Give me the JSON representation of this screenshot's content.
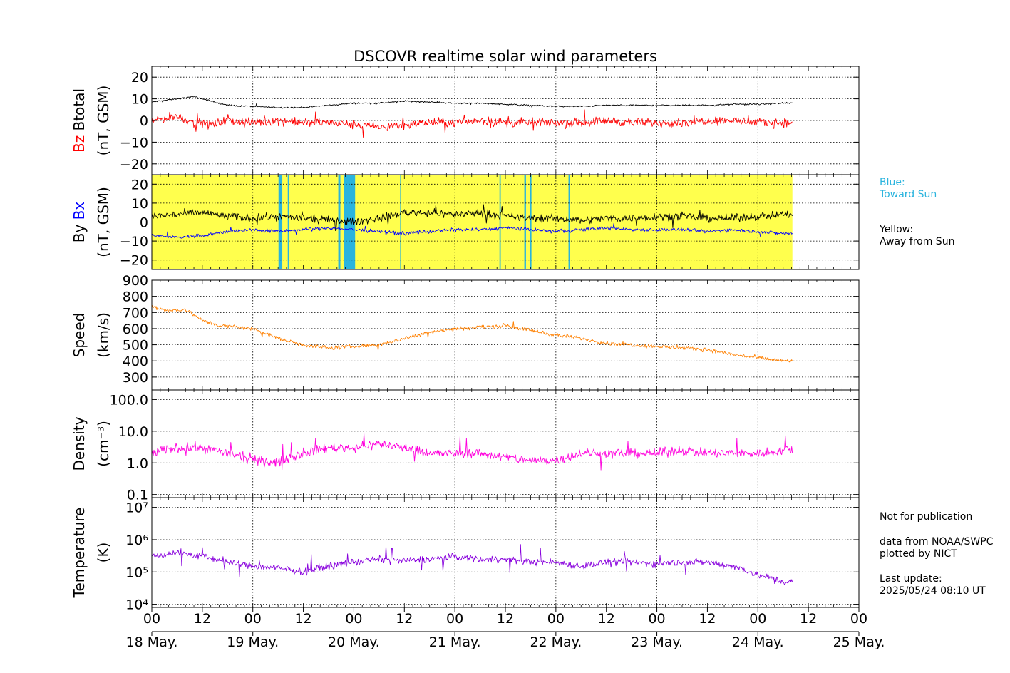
{
  "title": "DSCOVR realtime solar wind parameters",
  "colors": {
    "btotal": "#000000",
    "bz": "#ff0000",
    "by": "#000000",
    "bx": "#0000ff",
    "speed": "#ff8000",
    "density": "#ff00dd",
    "temperature": "#8800dd",
    "away_from_sun": "#ffff4d",
    "toward_sun": "#2ab4de"
  },
  "legend": {
    "blue_title": "Blue:",
    "blue_text": "Toward Sun",
    "yellow_title": "Yellow:",
    "yellow_text": "Away from Sun"
  },
  "notes": {
    "line1": "Not for publication",
    "line2": "data from NOAA/SWPC",
    "line3": "plotted by NICT",
    "line4": "Last update:",
    "line5": "2025/05/24 08:10 UT"
  },
  "chart_data": {
    "type": "line",
    "x_unit": "hours since 18 May 00 UT",
    "x_range": [
      0,
      168
    ],
    "x_hour_ticks": [
      "00",
      "12",
      "00",
      "12",
      "00",
      "12",
      "00",
      "12",
      "00",
      "12",
      "00",
      "12",
      "00",
      "12",
      "00"
    ],
    "x_date_labels": [
      "18 May.",
      "19 May.",
      "20 May.",
      "21 May.",
      "22 May.",
      "23 May.",
      "24 May.",
      "25 May."
    ],
    "data_end_hour": 152.2,
    "grid": true,
    "panels": [
      {
        "id": "mag",
        "ylabel_series1": "Bz",
        "ylabel_series2": "Btotal",
        "yunit": "(nT, GSM)",
        "ylim": [
          -25,
          25
        ],
        "yticks": [
          "20",
          "10",
          "0",
          "−10",
          "−20"
        ],
        "ytick_values": [
          20,
          10,
          0,
          -10,
          -20
        ],
        "series": [
          {
            "name": "Btotal",
            "x": [
              0,
              6,
              10,
              14,
              18,
              24,
              30,
              36,
              42,
              48,
              54,
              60,
              66,
              72,
              78,
              84,
              90,
              96,
              102,
              108,
              114,
              120,
              126,
              132,
              138,
              144,
              150,
              152
            ],
            "values": [
              8.5,
              10,
              11,
              9,
              7,
              6.5,
              6,
              6,
              7,
              8,
              8,
              9,
              8.5,
              8,
              8,
              7.5,
              7,
              6.5,
              6.5,
              7,
              7,
              7,
              7,
              7,
              7.5,
              7.5,
              8,
              8
            ]
          },
          {
            "name": "Bz",
            "x": [
              0,
              6,
              10,
              14,
              18,
              24,
              30,
              36,
              42,
              48,
              54,
              60,
              66,
              72,
              78,
              84,
              90,
              96,
              102,
              108,
              114,
              120,
              126,
              132,
              138,
              144,
              150,
              152
            ],
            "values": [
              0,
              2,
              -1,
              -2,
              0,
              -1,
              0,
              -1,
              -1,
              -2,
              -3,
              -2,
              -1,
              -1,
              0,
              -1,
              -1,
              -1,
              -1,
              0,
              -1,
              -1,
              -1,
              0,
              0,
              -1,
              -1,
              -1
            ]
          }
        ]
      },
      {
        "id": "bxy",
        "ylabel_series1": "By",
        "ylabel_series2": "Bx",
        "yunit": "(nT, GSM)",
        "ylim": [
          -25,
          25
        ],
        "yticks": [
          "20",
          "10",
          "0",
          "−10",
          "−20"
        ],
        "ytick_values": [
          20,
          10,
          0,
          -10,
          -20
        ],
        "series": [
          {
            "name": "By",
            "x": [
              0,
              6,
              12,
              18,
              24,
              30,
              36,
              42,
              48,
              54,
              60,
              66,
              72,
              78,
              84,
              90,
              96,
              102,
              108,
              114,
              120,
              126,
              132,
              138,
              144,
              150,
              152
            ],
            "values": [
              3,
              4,
              5,
              3,
              2,
              3,
              2,
              1,
              0,
              2,
              5,
              5,
              4,
              5,
              3,
              2,
              2,
              1,
              2,
              2,
              3,
              3,
              2,
              2,
              3,
              4,
              4
            ]
          },
          {
            "name": "Bx",
            "x": [
              0,
              6,
              12,
              18,
              24,
              30,
              36,
              42,
              48,
              54,
              60,
              66,
              72,
              78,
              84,
              90,
              96,
              102,
              108,
              114,
              120,
              126,
              132,
              138,
              144,
              150,
              152
            ],
            "values": [
              -7,
              -8,
              -7,
              -5,
              -4,
              -5,
              -4,
              -3,
              -4,
              -5,
              -6,
              -5,
              -4,
              -4,
              -3,
              -4,
              -5,
              -4,
              -3,
              -4,
              -4,
              -4,
              -5,
              -4,
              -5,
              -6,
              -6
            ]
          }
        ],
        "toward_sun_intervals": [
          [
            30.1,
            31.0
          ],
          [
            32.3,
            32.6
          ],
          [
            44.3,
            44.8
          ],
          [
            45.7,
            48.3
          ],
          [
            59.0,
            59.2
          ],
          [
            82.6,
            82.9
          ],
          [
            88.5,
            88.9
          ],
          [
            89.8,
            90.2
          ],
          [
            99.0,
            99.2
          ]
        ]
      },
      {
        "id": "speed",
        "ylabel": "Speed",
        "yunit": "(km/s)",
        "ylim": [
          220,
          900
        ],
        "yticks": [
          "900",
          "800",
          "700",
          "600",
          "500",
          "400",
          "300"
        ],
        "ytick_values": [
          900,
          800,
          700,
          600,
          500,
          400,
          300
        ],
        "series": [
          {
            "name": "Speed",
            "x": [
              0,
              4,
              8,
              12,
              16,
              20,
              24,
              30,
              36,
              42,
              48,
              54,
              60,
              66,
              72,
              78,
              84,
              88,
              92,
              96,
              102,
              108,
              114,
              120,
              126,
              132,
              138,
              144,
              150,
              152
            ],
            "values": [
              740,
              710,
              720,
              650,
              620,
              610,
              600,
              540,
              500,
              480,
              490,
              500,
              540,
              580,
              600,
              610,
              620,
              600,
              580,
              560,
              540,
              510,
              500,
              490,
              480,
              470,
              440,
              420,
              400,
              400
            ]
          }
        ]
      },
      {
        "id": "density",
        "ylabel": "Density",
        "yunit": "(cm⁻³)",
        "scale": "log",
        "ylim": [
          0.08,
          200
        ],
        "yticks": [
          "100.0",
          "10.0",
          "1.0",
          "0.1"
        ],
        "ytick_values": [
          100,
          10,
          1,
          0.1
        ],
        "series": [
          {
            "name": "Density",
            "x": [
              0,
              6,
              12,
              18,
              24,
              30,
              36,
              42,
              48,
              54,
              60,
              66,
              72,
              78,
              84,
              90,
              96,
              102,
              108,
              114,
              120,
              126,
              132,
              138,
              144,
              150,
              152
            ],
            "values": [
              2,
              3,
              3,
              2,
              1.2,
              1,
              2,
              3,
              3,
              4,
              3,
              2,
              2,
              2,
              1.5,
              1.2,
              1.2,
              2,
              2,
              2,
              2,
              2.5,
              2,
              2,
              2,
              2.5,
              2.5
            ]
          }
        ]
      },
      {
        "id": "temperature",
        "ylabel": "Temperature",
        "yunit": "(K)",
        "scale": "log",
        "ylim": [
          8000,
          20000000
        ],
        "yticks": [
          "10⁷",
          "10⁶",
          "10⁵",
          "10⁴"
        ],
        "ytick_values": [
          10000000,
          1000000,
          100000,
          10000
        ],
        "series": [
          {
            "name": "Temperature",
            "x": [
              0,
              6,
              12,
              18,
              24,
              30,
              36,
              42,
              48,
              54,
              60,
              66,
              72,
              78,
              84,
              90,
              96,
              102,
              108,
              114,
              120,
              126,
              132,
              138,
              144,
              150,
              152
            ],
            "values": [
              300000,
              400000,
              300000,
              200000,
              150000,
              130000,
              100000,
              150000,
              200000,
              250000,
              220000,
              250000,
              300000,
              250000,
              250000,
              200000,
              200000,
              150000,
              200000,
              200000,
              180000,
              200000,
              200000,
              150000,
              80000,
              50000,
              50000
            ]
          }
        ]
      }
    ]
  }
}
